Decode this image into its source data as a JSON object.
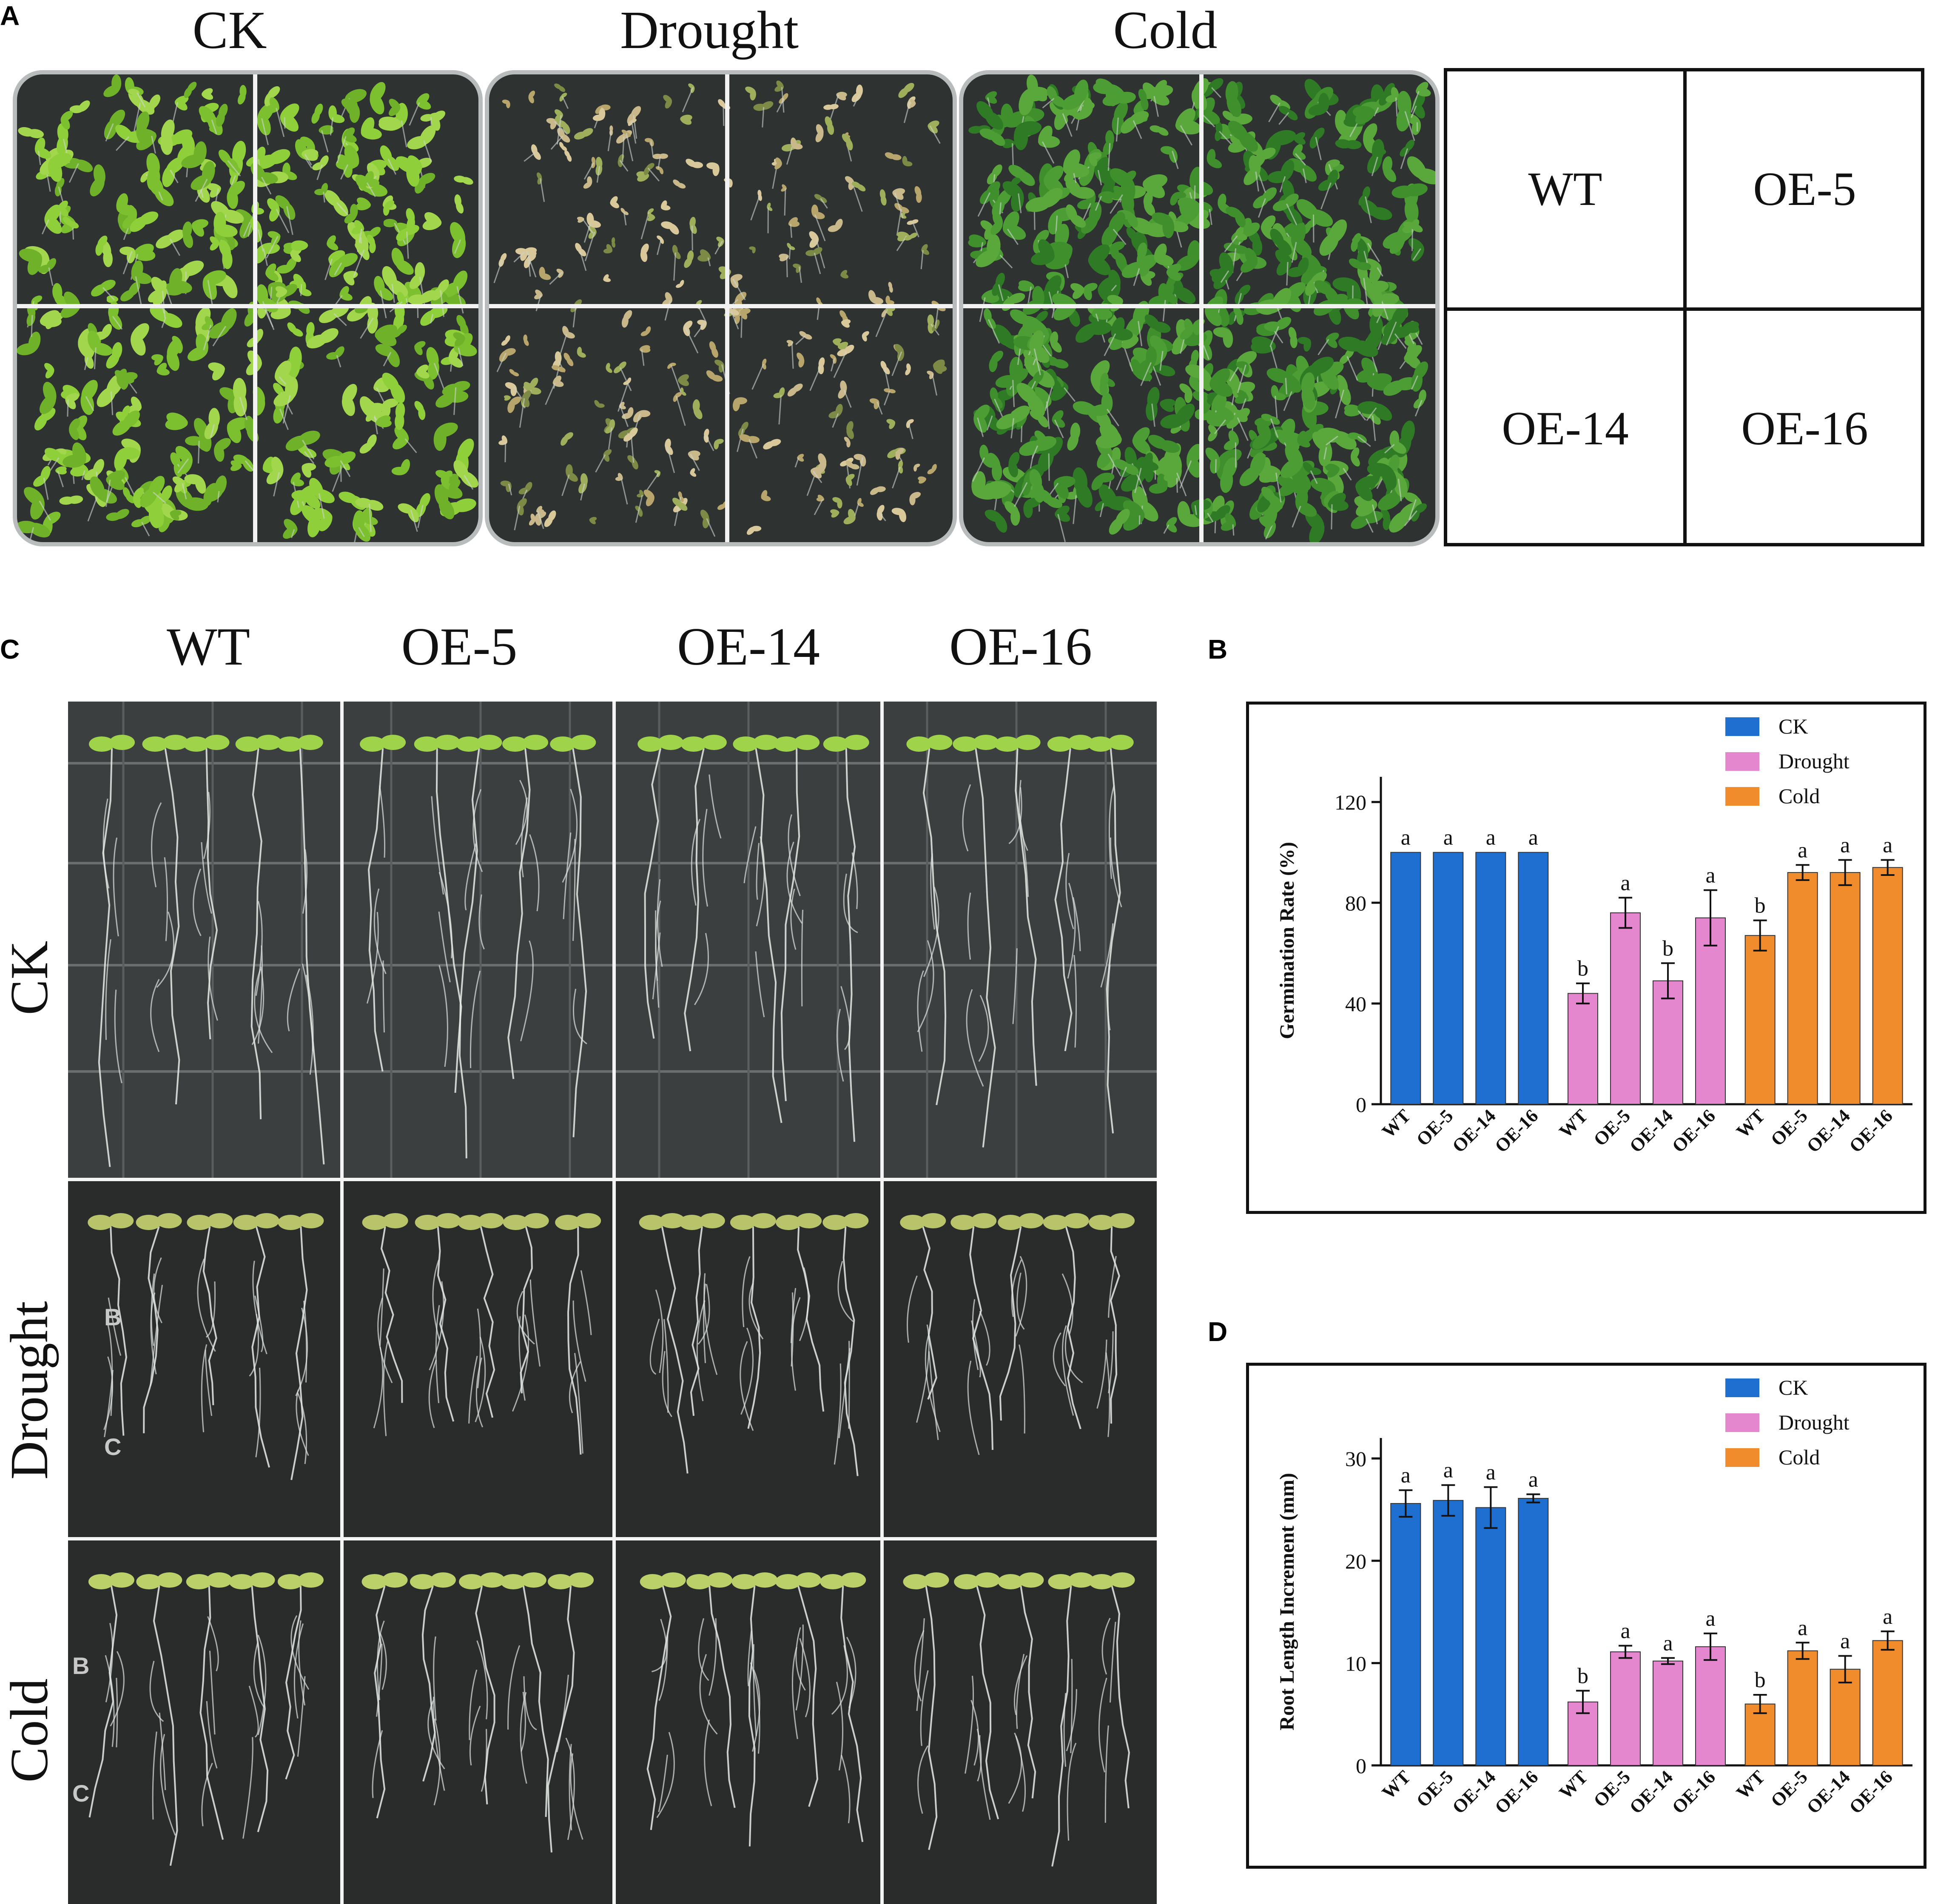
{
  "panel_labels": {
    "a": "A",
    "b": "B",
    "c": "C",
    "d": "D"
  },
  "panel_a": {
    "column_titles": [
      "CK",
      "Drought",
      "Cold"
    ],
    "layout_key": [
      "WT",
      "OE-5",
      "OE-14",
      "OE-16"
    ]
  },
  "panel_c": {
    "column_titles": [
      "WT",
      "OE-5",
      "OE-14",
      "OE-16"
    ],
    "row_titles": [
      "CK",
      "Drought",
      "Cold"
    ],
    "plate_marks": [
      "B",
      "C",
      "B",
      "C"
    ]
  },
  "colors": {
    "CK": "#1f6fd1",
    "Drought": "#e487cf",
    "Cold": "#f08c2c"
  },
  "chart_data": [
    {
      "type": "bar",
      "panel": "B",
      "title": "",
      "ylabel": "Germination Rate (%)",
      "xlabel": "",
      "ylim": [
        0,
        130
      ],
      "yticks": [
        0,
        40,
        80,
        120
      ],
      "categories": [
        "WT",
        "OE-5",
        "OE-14",
        "OE-16"
      ],
      "legend": [
        "CK",
        "Drought",
        "Cold"
      ],
      "legend_position": "top-right",
      "series": [
        {
          "name": "CK",
          "values": [
            100,
            100,
            100,
            100
          ],
          "errors": [
            0,
            0,
            0,
            0
          ],
          "letters": [
            "a",
            "a",
            "a",
            "a"
          ]
        },
        {
          "name": "Drought",
          "values": [
            44,
            76,
            49,
            74
          ],
          "errors": [
            4,
            6,
            7,
            11
          ],
          "letters": [
            "b",
            "a",
            "b",
            "a"
          ]
        },
        {
          "name": "Cold",
          "values": [
            67,
            92,
            92,
            94
          ],
          "errors": [
            6,
            3,
            5,
            3
          ],
          "letters": [
            "b",
            "a",
            "a",
            "a"
          ]
        }
      ]
    },
    {
      "type": "bar",
      "panel": "D",
      "title": "",
      "ylabel": "Root Length Increment (mm)",
      "xlabel": "",
      "ylim": [
        0,
        32
      ],
      "yticks": [
        0,
        10,
        20,
        30
      ],
      "categories": [
        "WT",
        "OE-5",
        "OE-14",
        "OE-16"
      ],
      "legend": [
        "CK",
        "Drought",
        "Cold"
      ],
      "legend_position": "top-right",
      "series": [
        {
          "name": "CK",
          "values": [
            25.6,
            25.9,
            25.2,
            26.1
          ],
          "errors": [
            1.3,
            1.5,
            2.0,
            0.4
          ],
          "letters": [
            "a",
            "a",
            "a",
            "a"
          ]
        },
        {
          "name": "Drought",
          "values": [
            6.2,
            11.1,
            10.2,
            11.6
          ],
          "errors": [
            1.1,
            0.6,
            0.3,
            1.3
          ],
          "letters": [
            "b",
            "a",
            "a",
            "a"
          ]
        },
        {
          "name": "Cold",
          "values": [
            6.0,
            11.2,
            9.4,
            12.2
          ],
          "errors": [
            0.9,
            0.8,
            1.3,
            0.9
          ],
          "letters": [
            "b",
            "a",
            "a",
            "a"
          ]
        }
      ]
    }
  ]
}
